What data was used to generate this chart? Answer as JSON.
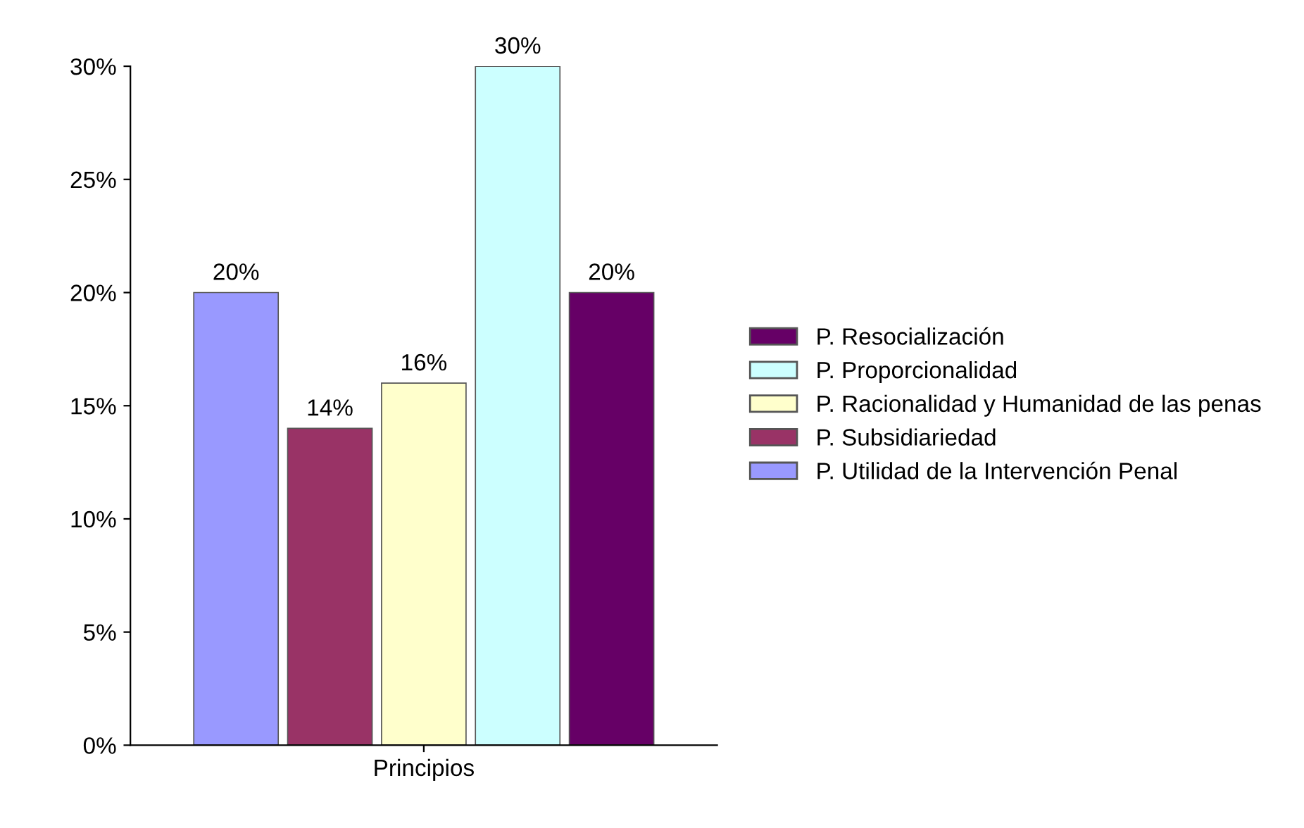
{
  "chart_data": {
    "type": "bar",
    "categories": [
      "Principios"
    ],
    "series": [
      {
        "name": "P. Utilidad de la Intervención Penal",
        "color": "#9999ff",
        "values": [
          20
        ],
        "value_labels": [
          "20%"
        ]
      },
      {
        "name": "P. Subsidiariedad",
        "color": "#993366",
        "values": [
          14
        ],
        "value_labels": [
          "14%"
        ]
      },
      {
        "name": "P. Racionalidad y Humanidad de las penas",
        "color": "#ffffcc",
        "values": [
          16
        ],
        "value_labels": [
          "16%"
        ]
      },
      {
        "name": "P. Proporcionalidad",
        "color": "#ccffff",
        "values": [
          30
        ],
        "value_labels": [
          "30%"
        ]
      },
      {
        "name": "P. Resocialización",
        "color": "#660066",
        "values": [
          20
        ],
        "value_labels": [
          "20%"
        ]
      }
    ],
    "ylim": [
      0,
      30
    ],
    "yticks": [
      {
        "value": 0,
        "label": "0%"
      },
      {
        "value": 5,
        "label": "5%"
      },
      {
        "value": 10,
        "label": "10%"
      },
      {
        "value": 15,
        "label": "15%"
      },
      {
        "value": 20,
        "label": "20%"
      },
      {
        "value": 25,
        "label": "25%"
      },
      {
        "value": 30,
        "label": "30%"
      }
    ],
    "grid": false,
    "legend": "right"
  }
}
